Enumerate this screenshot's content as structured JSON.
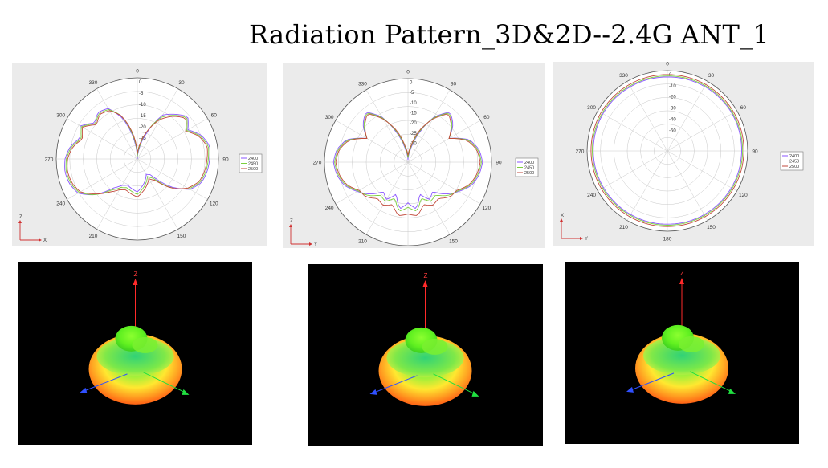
{
  "title": "Radiation Pattern_3D&2D--2.4G ANT_1",
  "colors": {
    "s2400": "#8a55ff",
    "s2450": "#7ccf3c",
    "s2500": "#c24a3c",
    "panel_bg": "#ebebeb"
  },
  "chart_data": [
    {
      "type": "polar",
      "plane": "XZ",
      "axis_labels": {
        "vertical": "Z",
        "horizontal": "X"
      },
      "angle_labels": [
        "0",
        "30",
        "60",
        "90",
        "120",
        "150",
        "180",
        "210",
        "240",
        "270",
        "300",
        "330"
      ],
      "radial_ticks": [
        "0",
        "-5",
        "-10",
        "-15",
        "-20",
        "-25"
      ],
      "rlim": [
        -30,
        2
      ],
      "legend": [
        "2400",
        "2450",
        "2500"
      ],
      "legend_position": "right",
      "series": [
        {
          "name": "2400",
          "theta": [
            0,
            10,
            20,
            30,
            40,
            50,
            60,
            70,
            80,
            90,
            100,
            110,
            120,
            130,
            140,
            150,
            160,
            170,
            180,
            190,
            200,
            210,
            220,
            230,
            240,
            250,
            260,
            270,
            280,
            290,
            300,
            310,
            320,
            330,
            340,
            350
          ],
          "r": [
            -30,
            -26,
            -19,
            -10,
            -7,
            -4,
            -7,
            -3,
            -1,
            -1.5,
            -2,
            -3,
            -6,
            -13,
            -22,
            -23,
            -21,
            -19,
            -17,
            -18,
            -19,
            -18,
            -15,
            -8,
            -3,
            -1.5,
            -1,
            -1.5,
            -3,
            -6,
            -4,
            -8,
            -6,
            -7,
            -13,
            -22
          ]
        },
        {
          "name": "2450",
          "theta": [
            0,
            10,
            20,
            30,
            40,
            50,
            60,
            70,
            80,
            90,
            100,
            110,
            120,
            130,
            140,
            150,
            160,
            170,
            180,
            190,
            200,
            210,
            220,
            230,
            240,
            250,
            260,
            270,
            280,
            290,
            300,
            310,
            320,
            330,
            340,
            350
          ],
          "r": [
            -29,
            -25,
            -18,
            -11,
            -7.5,
            -4.5,
            -7.5,
            -3.5,
            -1.5,
            -2,
            -2.5,
            -3.5,
            -6.5,
            -12,
            -20,
            -22,
            -20,
            -18,
            -16,
            -17,
            -18,
            -17,
            -14,
            -8,
            -3.5,
            -2,
            -1.5,
            -2,
            -3.5,
            -6.5,
            -4.5,
            -8.5,
            -6.5,
            -7.5,
            -12,
            -21
          ]
        },
        {
          "name": "2500",
          "theta": [
            0,
            10,
            20,
            30,
            40,
            50,
            60,
            70,
            80,
            90,
            100,
            110,
            120,
            130,
            140,
            150,
            160,
            170,
            180,
            190,
            200,
            210,
            220,
            230,
            240,
            250,
            260,
            270,
            280,
            290,
            300,
            310,
            320,
            330,
            340,
            350
          ],
          "r": [
            -28,
            -24,
            -18,
            -12,
            -8,
            -5,
            -8,
            -4,
            -2,
            -2.5,
            -3,
            -4,
            -7,
            -12,
            -19,
            -21,
            -19,
            -17,
            -15,
            -16,
            -17,
            -16,
            -13,
            -8.5,
            -4,
            -2.5,
            -2,
            -2.5,
            -4,
            -7,
            -5,
            -9,
            -7,
            -8,
            -12,
            -20
          ]
        }
      ]
    },
    {
      "type": "polar",
      "plane": "YZ",
      "axis_labels": {
        "vertical": "Z",
        "horizontal": "Y"
      },
      "angle_labels": [
        "0",
        "30",
        "60",
        "90",
        "120",
        "150",
        "180",
        "210",
        "240",
        "270",
        "300",
        "330"
      ],
      "radial_ticks": [
        "0",
        "-5",
        "-10",
        "-15",
        "-20",
        "-25",
        "-30"
      ],
      "rlim": [
        -35,
        2
      ],
      "legend": [
        "2400",
        "2450",
        "2500"
      ],
      "legend_position": "right",
      "series": [
        {
          "name": "2400",
          "theta": [
            0,
            10,
            20,
            30,
            40,
            50,
            60,
            70,
            80,
            90,
            100,
            110,
            120,
            130,
            140,
            150,
            160,
            170,
            180,
            190,
            200,
            210,
            220,
            230,
            240,
            250,
            260,
            270,
            280,
            290,
            300,
            310,
            320,
            330,
            340,
            350
          ],
          "r": [
            -34,
            -30,
            -22,
            -12,
            -6,
            -9,
            -14,
            -6,
            -3,
            -2,
            -3,
            -5,
            -9,
            -13,
            -18,
            -16,
            -20,
            -14,
            -17,
            -14,
            -20,
            -16,
            -18,
            -13,
            -9,
            -5,
            -3,
            -2,
            -3,
            -6,
            -14,
            -9,
            -6,
            -12,
            -22,
            -30
          ]
        },
        {
          "name": "2450",
          "theta": [
            0,
            10,
            20,
            30,
            40,
            50,
            60,
            70,
            80,
            90,
            100,
            110,
            120,
            130,
            140,
            150,
            160,
            170,
            180,
            190,
            200,
            210,
            220,
            230,
            240,
            250,
            260,
            270,
            280,
            290,
            300,
            310,
            320,
            330,
            340,
            350
          ],
          "r": [
            -33,
            -29,
            -21,
            -12.5,
            -6.5,
            -9.5,
            -14,
            -6.5,
            -3.5,
            -2.5,
            -3.5,
            -5.5,
            -9.5,
            -12,
            -16,
            -15,
            -18,
            -13,
            -15,
            -13,
            -18,
            -15,
            -16,
            -12,
            -9.5,
            -5.5,
            -3.5,
            -2.5,
            -3.5,
            -6.5,
            -14,
            -9.5,
            -6.5,
            -12.5,
            -21,
            -29
          ]
        },
        {
          "name": "2500",
          "theta": [
            0,
            10,
            20,
            30,
            40,
            50,
            60,
            70,
            80,
            90,
            100,
            110,
            120,
            130,
            140,
            150,
            160,
            170,
            180,
            190,
            200,
            210,
            220,
            230,
            240,
            250,
            260,
            270,
            280,
            290,
            300,
            310,
            320,
            330,
            340,
            350
          ],
          "r": [
            -32,
            -28,
            -20,
            -13,
            -7,
            -10,
            -14,
            -7,
            -4,
            -3,
            -4,
            -6,
            -10,
            -11,
            -14,
            -13,
            -15,
            -11,
            -12,
            -11,
            -15,
            -13,
            -14,
            -11,
            -10,
            -6,
            -4,
            -3,
            -4,
            -7,
            -14,
            -10,
            -7,
            -13,
            -20,
            -28
          ]
        }
      ]
    },
    {
      "type": "polar",
      "plane": "XY",
      "axis_labels": {
        "vertical": "X",
        "horizontal": "Y"
      },
      "angle_labels": [
        "0",
        "30",
        "60",
        "90",
        "120",
        "150",
        "180",
        "210",
        "240",
        "270",
        "300",
        "330"
      ],
      "radial_ticks": [
        "0",
        "-10",
        "-20",
        "-30",
        "-40",
        "-50"
      ],
      "rlim": [
        -55,
        2
      ],
      "legend": [
        "2400",
        "2450",
        "2500"
      ],
      "legend_position": "right",
      "series": [
        {
          "name": "2400",
          "theta": [
            0,
            30,
            60,
            90,
            120,
            150,
            180,
            210,
            240,
            270,
            300,
            330
          ],
          "r": [
            -2.5,
            -2.2,
            -2,
            -2.3,
            -2.6,
            -2.8,
            -3,
            -2.9,
            -2.7,
            -2.4,
            -2.2,
            -2.4
          ]
        },
        {
          "name": "2450",
          "theta": [
            0,
            30,
            60,
            90,
            120,
            150,
            180,
            210,
            240,
            270,
            300,
            330
          ],
          "r": [
            -1.8,
            -1.5,
            -1.4,
            -1.6,
            -1.9,
            -2.1,
            -2.3,
            -2.2,
            -2,
            -1.7,
            -1.5,
            -1.7
          ]
        },
        {
          "name": "2500",
          "theta": [
            0,
            30,
            60,
            90,
            120,
            150,
            180,
            210,
            240,
            270,
            300,
            330
          ],
          "r": [
            -0.8,
            -0.6,
            -0.5,
            -0.7,
            -1,
            -1.2,
            -1.3,
            -1.2,
            -1,
            -0.8,
            -0.6,
            -0.7
          ]
        }
      ]
    }
  ],
  "views3d": [
    {
      "axes": {
        "z": "Z"
      }
    },
    {
      "axes": {
        "z": "Z"
      }
    },
    {
      "axes": {
        "z": "Z"
      }
    }
  ]
}
